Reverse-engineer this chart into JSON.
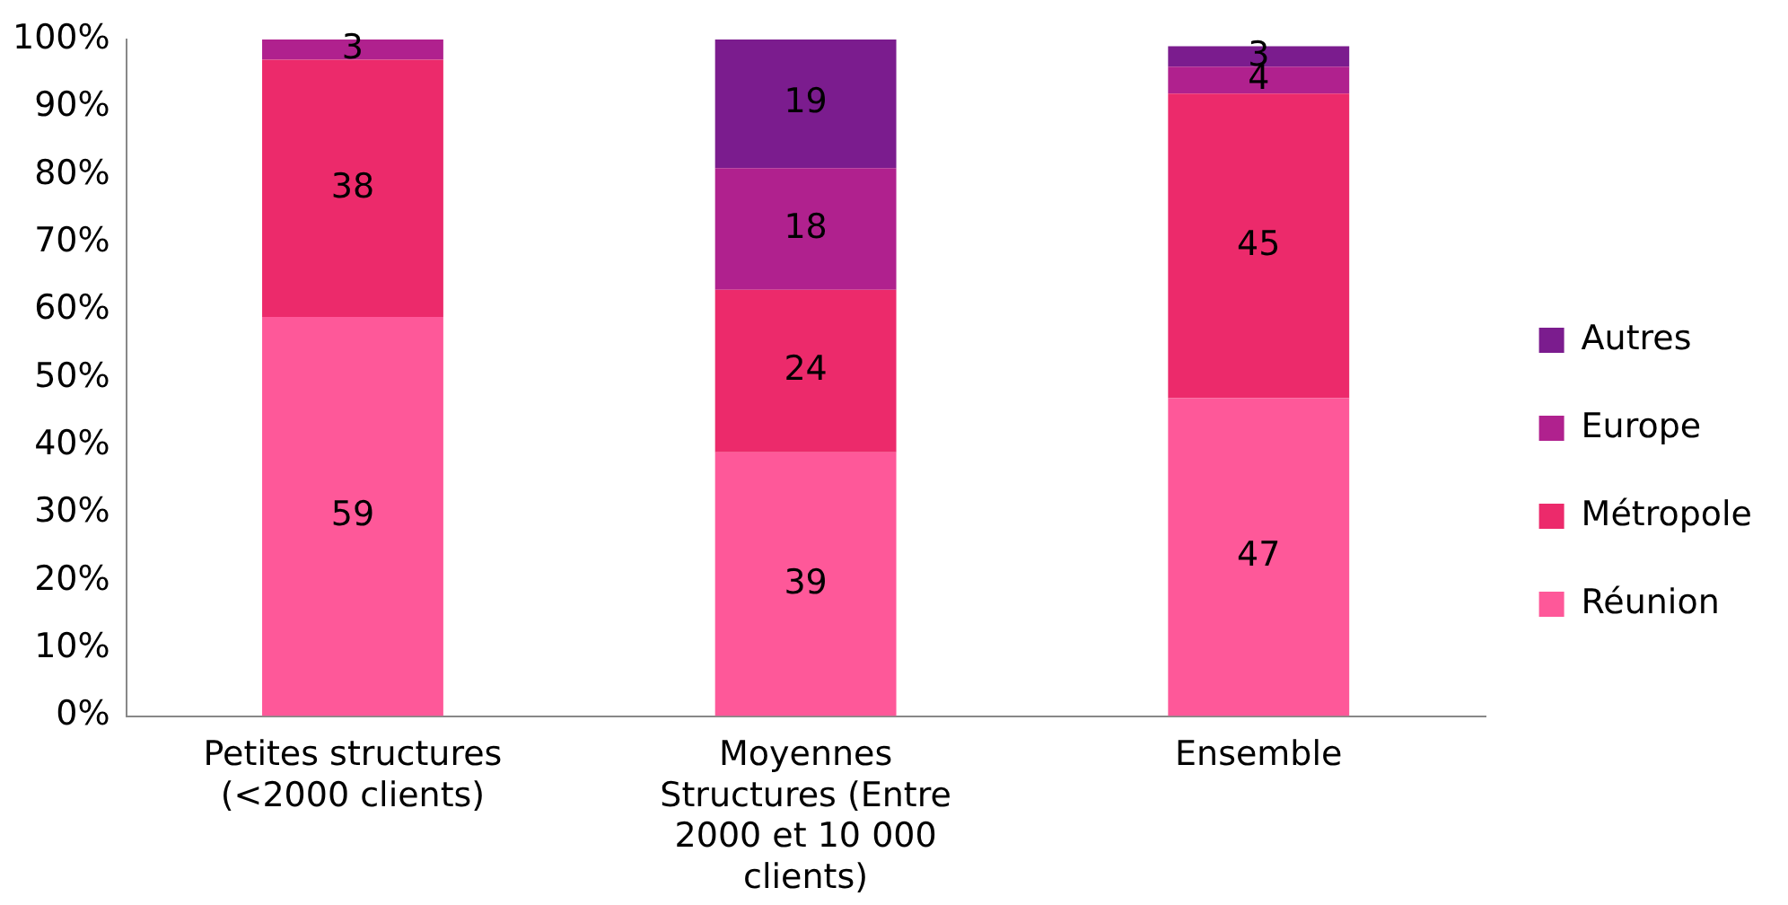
{
  "chart_data": {
    "type": "bar",
    "stacked": true,
    "categories": [
      "Petites structures (<2000 clients)",
      "Moyennes Structures (Entre 2000 et 10 000 clients)",
      "Ensemble"
    ],
    "series": [
      {
        "name": "Réunion",
        "color": "#fe5899",
        "values": [
          59,
          39,
          47
        ]
      },
      {
        "name": "Métropole",
        "color": "#ec2a6b",
        "values": [
          38,
          24,
          45
        ]
      },
      {
        "name": "Europe",
        "color": "#b0218e",
        "values": [
          3,
          18,
          4
        ]
      },
      {
        "name": "Autres",
        "color": "#7b1c8e",
        "values": [
          null,
          19,
          3
        ]
      }
    ],
    "ylim": [
      0,
      100
    ],
    "yticks": [
      {
        "value": 0,
        "label": "0%"
      },
      {
        "value": 10,
        "label": "10%"
      },
      {
        "value": 20,
        "label": "20%"
      },
      {
        "value": 30,
        "label": "30%"
      },
      {
        "value": 40,
        "label": "40%"
      },
      {
        "value": 50,
        "label": "50%"
      },
      {
        "value": 60,
        "label": "60%"
      },
      {
        "value": 70,
        "label": "70%"
      },
      {
        "value": 80,
        "label": "80%"
      },
      {
        "value": 90,
        "label": "90%"
      },
      {
        "value": 100,
        "label": "100%"
      }
    ],
    "grid": false,
    "legend": "right",
    "data_labels": true
  }
}
